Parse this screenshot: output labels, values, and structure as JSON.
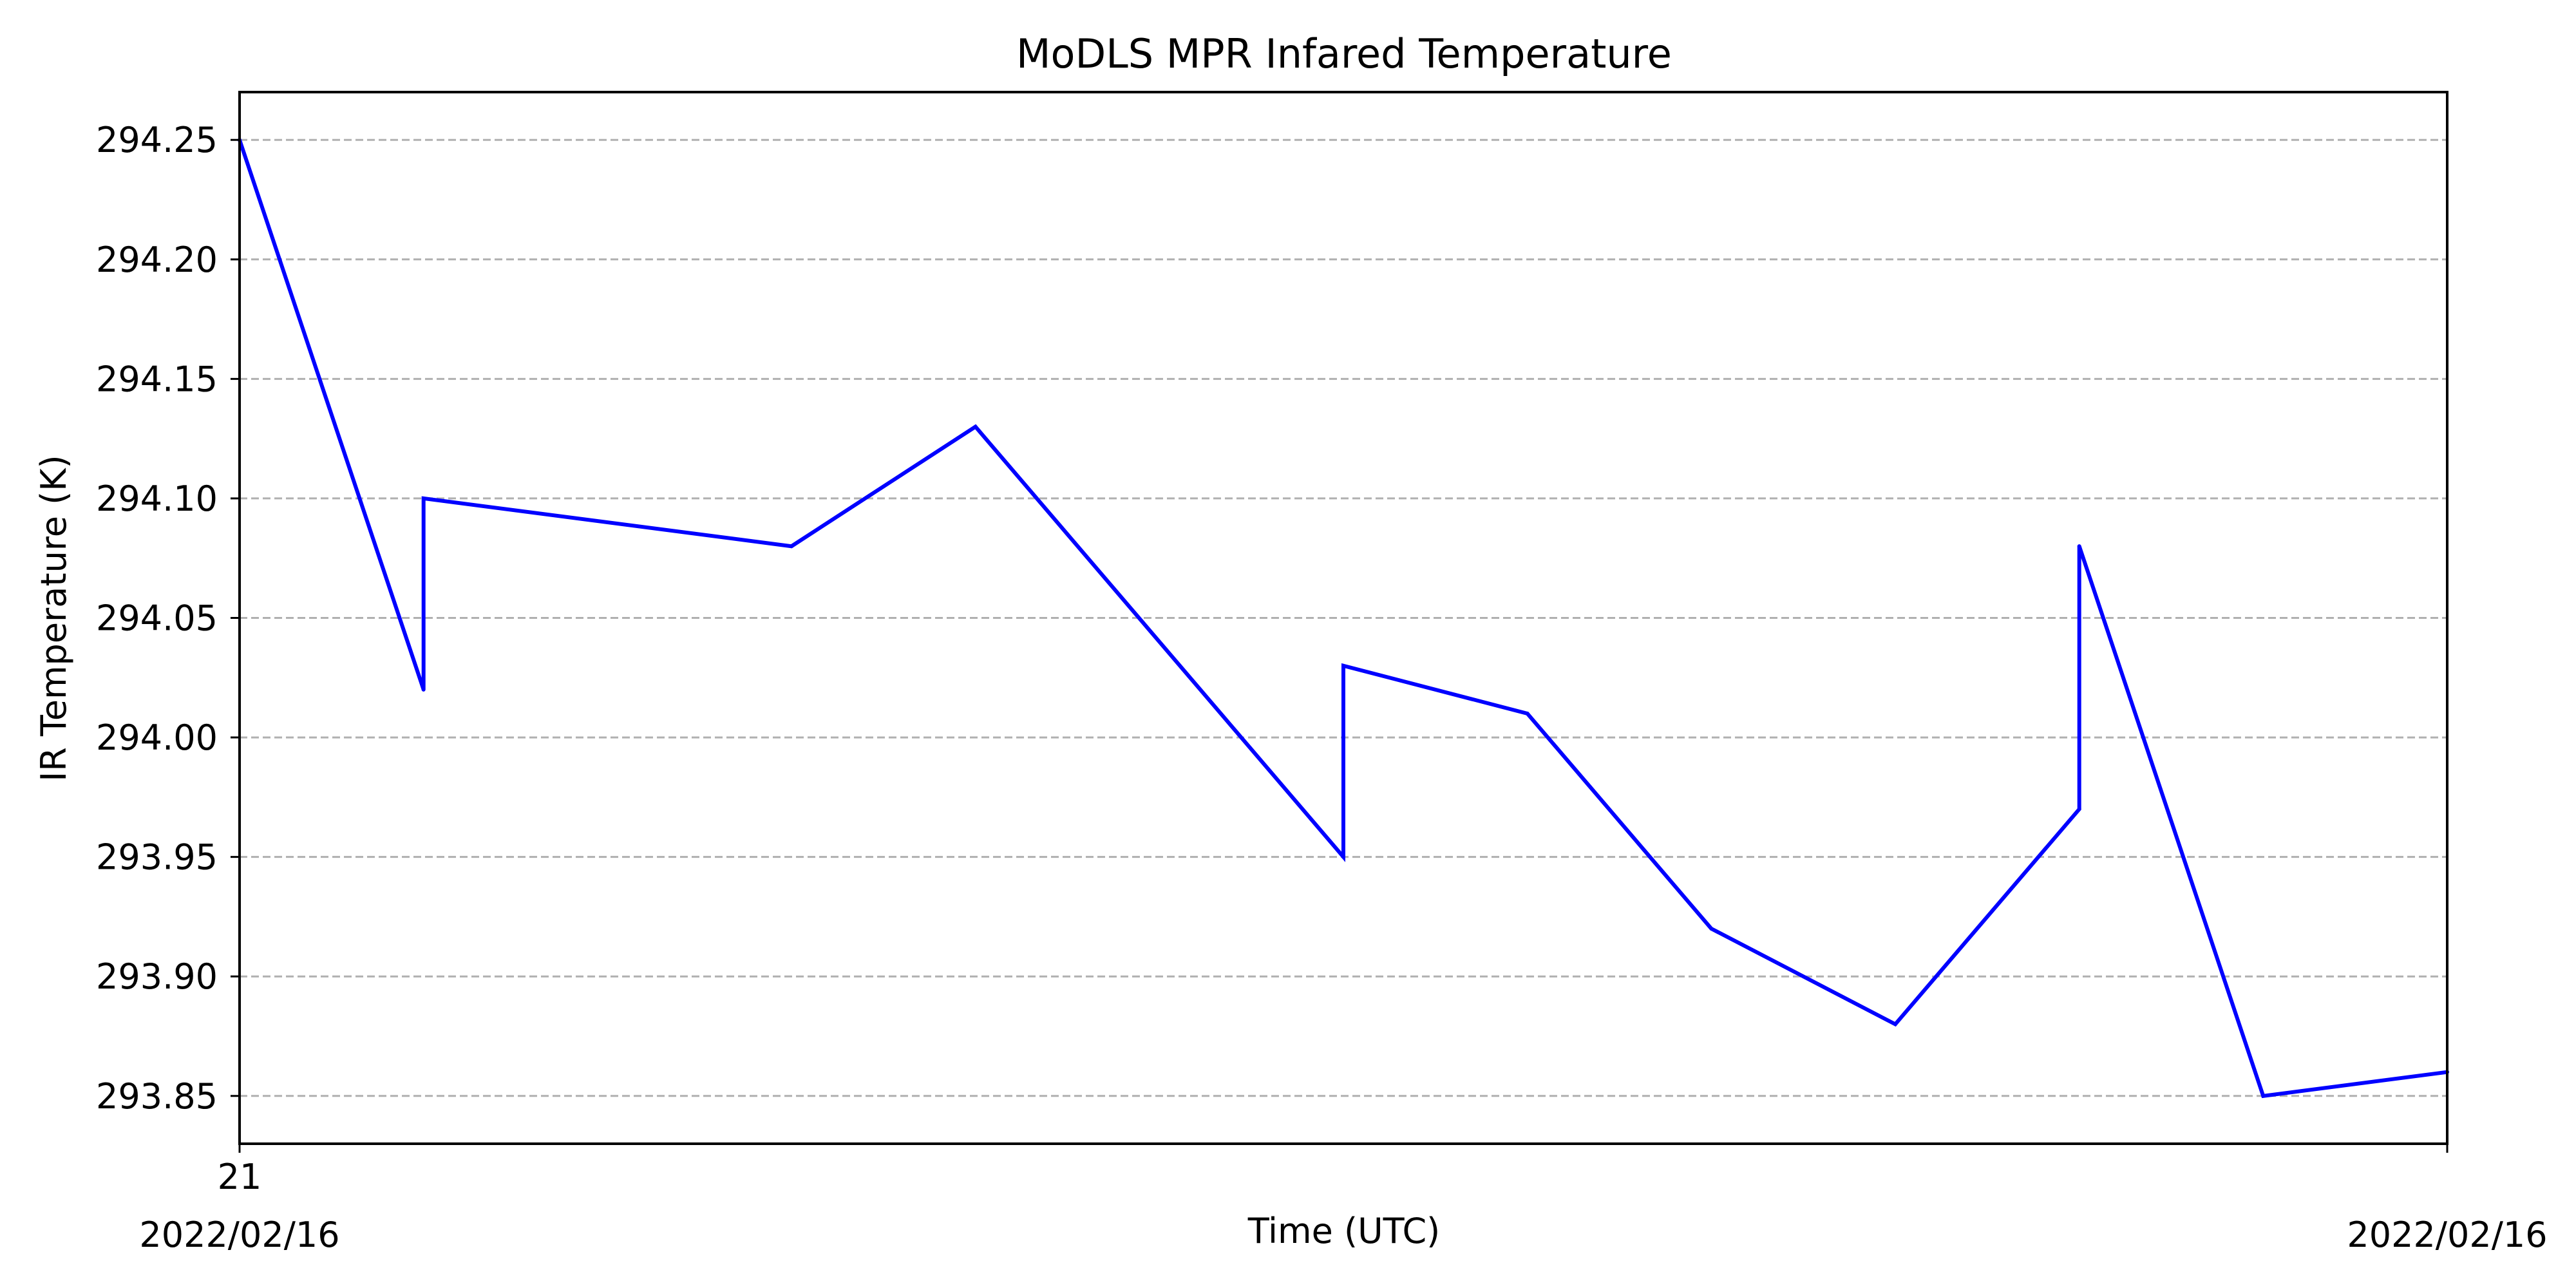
{
  "chart_data": {
    "type": "line",
    "title": "MoDLS MPR Infared Temperature",
    "xlabel": "Time (UTC)",
    "ylabel": "IR Temperature (K)",
    "x_tick_labels": [
      {
        "label": "21",
        "sublabel": "2022/02/16"
      },
      {
        "label": "",
        "sublabel": "2022/02/16"
      }
    ],
    "y_ticks": [
      "293.85",
      "293.90",
      "293.95",
      "294.00",
      "294.05",
      "294.10",
      "294.15",
      "294.20",
      "294.25"
    ],
    "ylim": [
      293.83,
      294.27
    ],
    "xlim": [
      0,
      12
    ],
    "grid": {
      "y": true,
      "x": false,
      "style": "dashed"
    },
    "series": [
      {
        "color": "#0000ff",
        "x": [
          0,
          1,
          1,
          3,
          4,
          6,
          6,
          7,
          8,
          9,
          10,
          10,
          11,
          12
        ],
        "y": [
          294.25,
          294.02,
          294.1,
          294.08,
          294.13,
          293.95,
          294.03,
          294.01,
          293.92,
          293.88,
          293.97,
          294.08,
          293.85,
          293.86
        ]
      }
    ]
  }
}
